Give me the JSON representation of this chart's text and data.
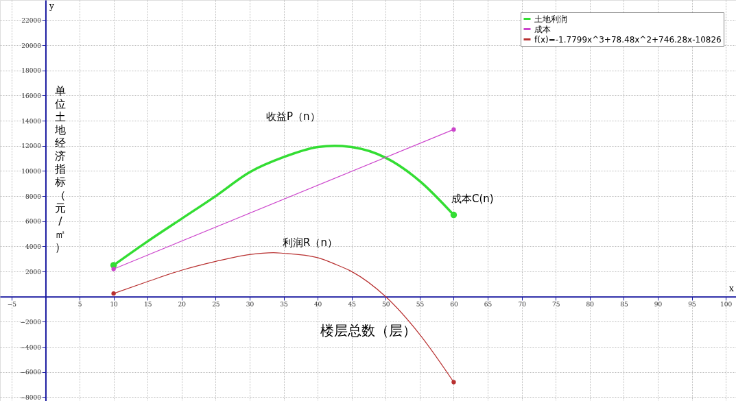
{
  "chart_data": {
    "type": "line",
    "xlabel": "楼层总数（层）",
    "ylabel": "单位土地经济指标（元/㎡）",
    "xlim": [
      -6.7,
      101.5
    ],
    "ylim": [
      -8300,
      23600
    ],
    "xticks": [
      -5,
      5,
      10,
      15,
      20,
      25,
      30,
      35,
      40,
      45,
      50,
      55,
      60,
      65,
      70,
      75,
      80,
      85,
      90,
      95,
      100
    ],
    "yticks": [
      -8000,
      -6000,
      -4000,
      -2000,
      2000,
      4000,
      6000,
      8000,
      10000,
      12000,
      14000,
      16000,
      18000,
      20000,
      22000
    ],
    "grid": true,
    "legend": "top right",
    "line_style": "solid",
    "x": [
      10,
      15,
      20,
      25,
      30,
      33.5,
      35,
      40,
      42.5,
      45,
      50,
      55,
      60
    ],
    "series": [
      {
        "name": "土地利润",
        "color": "#33dd33",
        "x": [
          10,
          15,
          20,
          25,
          30,
          35,
          40,
          42.5,
          45,
          50,
          55,
          60
        ],
        "values": [
          2500,
          4400,
          6200,
          8000,
          9900,
          11100,
          11900,
          12000,
          11900,
          11050,
          9200,
          6500
        ]
      },
      {
        "name": "成本",
        "color": "#cc44cc",
        "marker": "circle",
        "x": [
          10,
          60
        ],
        "values": [
          2200,
          13300
        ]
      },
      {
        "name": "f(x)=-1.7799x^3+78.48x^2+746.28x-10826",
        "color": "#b83030",
        "values": [
          250,
          1200,
          2100,
          2800,
          3350,
          3500,
          3450,
          3100,
          2600,
          2000,
          0,
          -3000,
          -6800
        ]
      }
    ],
    "annotations": [
      "收益P（n）",
      "成本C(n)",
      "利润R（n）",
      "x",
      "y"
    ]
  }
}
